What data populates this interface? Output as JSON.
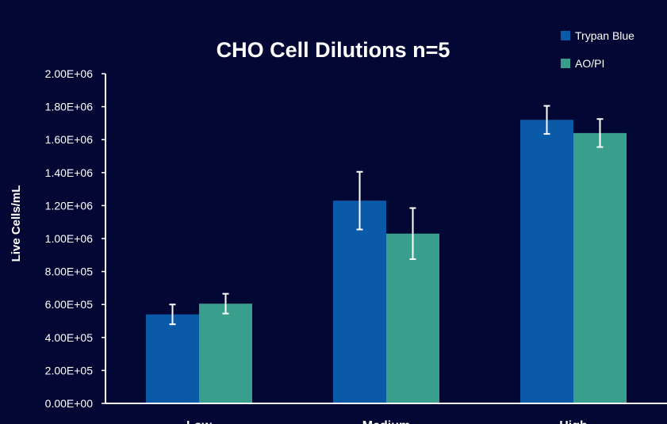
{
  "chart_data": {
    "type": "bar",
    "title": "CHO Cell Dilutions n=5",
    "xlabel": "",
    "ylabel": "Live Cells/mL",
    "categories": [
      "Low",
      "Medium",
      "High"
    ],
    "ylim": [
      0,
      2000000
    ],
    "yticks": [
      0,
      200000,
      400000,
      600000,
      800000,
      1000000,
      1200000,
      1400000,
      1600000,
      1800000,
      2000000
    ],
    "ytick_labels": [
      "0.00E+00",
      "2.00E+05",
      "4.00E+05",
      "6.00E+05",
      "8.00E+05",
      "1.00E+06",
      "1.20E+06",
      "1.40E+06",
      "1.60E+06",
      "1.80E+06",
      "2.00E+06"
    ],
    "grid": false,
    "legend_position": "top-right",
    "series": [
      {
        "name": "Trypan Blue",
        "color": "#0a5aa8",
        "values": [
          540000,
          1230000,
          1720000
        ],
        "error": [
          60000,
          175000,
          85000
        ]
      },
      {
        "name": "AO/PI",
        "color": "#3a9e8c",
        "values": [
          605000,
          1030000,
          1640000
        ],
        "error": [
          60000,
          155000,
          85000
        ]
      }
    ]
  }
}
